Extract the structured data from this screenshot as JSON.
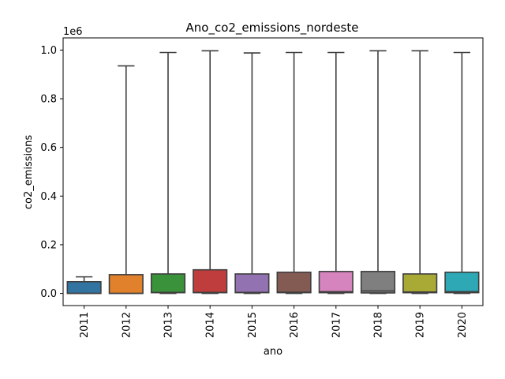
{
  "chart_data": {
    "type": "box",
    "title": "Ano_co2_emissions_nordeste",
    "xlabel": "ano",
    "ylabel": "co2_emissions",
    "y_scale_label": "1e6",
    "ylim": [
      -0.05,
      1.05
    ],
    "y_ticks": [
      0.0,
      0.2,
      0.4,
      0.6,
      0.8,
      1.0
    ],
    "y_tick_labels": [
      "0.0",
      "0.2",
      "0.4",
      "0.6",
      "0.8",
      "1.0"
    ],
    "categories": [
      "2011",
      "2012",
      "2013",
      "2014",
      "2015",
      "2016",
      "2017",
      "2018",
      "2019",
      "2020"
    ],
    "boxes": [
      {
        "category": "2011",
        "whislo": 0.0,
        "q1": 0.0,
        "med": 0.0,
        "q3": 0.048,
        "whishi": 0.068,
        "color": "#3274a1"
      },
      {
        "category": "2012",
        "whislo": 0.0,
        "q1": 0.0,
        "med": 0.0,
        "q3": 0.077,
        "whishi": 0.935,
        "color": "#e1812c"
      },
      {
        "category": "2013",
        "whislo": 0.0,
        "q1": 0.003,
        "med": 0.004,
        "q3": 0.08,
        "whishi": 0.99,
        "color": "#3a923a"
      },
      {
        "category": "2014",
        "whislo": 0.0,
        "q1": 0.003,
        "med": 0.004,
        "q3": 0.097,
        "whishi": 0.997,
        "color": "#c03d3e"
      },
      {
        "category": "2015",
        "whislo": 0.0,
        "q1": 0.003,
        "med": 0.004,
        "q3": 0.08,
        "whishi": 0.988,
        "color": "#9372b2"
      },
      {
        "category": "2016",
        "whislo": 0.0,
        "q1": 0.003,
        "med": 0.005,
        "q3": 0.087,
        "whishi": 0.99,
        "color": "#845b53"
      },
      {
        "category": "2017",
        "whislo": 0.0,
        "q1": 0.003,
        "med": 0.007,
        "q3": 0.09,
        "whishi": 0.99,
        "color": "#d684bd"
      },
      {
        "category": "2018",
        "whislo": 0.0,
        "q1": 0.002,
        "med": 0.01,
        "q3": 0.09,
        "whishi": 0.997,
        "color": "#7f7f7f"
      },
      {
        "category": "2019",
        "whislo": 0.0,
        "q1": 0.003,
        "med": 0.006,
        "q3": 0.08,
        "whishi": 0.997,
        "color": "#a9aa35"
      },
      {
        "category": "2020",
        "whislo": 0.0,
        "q1": 0.003,
        "med": 0.007,
        "q3": 0.087,
        "whishi": 0.99,
        "color": "#2ea8b4"
      }
    ],
    "line_color": "#3f3f3f",
    "grid": false,
    "legend": "none"
  }
}
